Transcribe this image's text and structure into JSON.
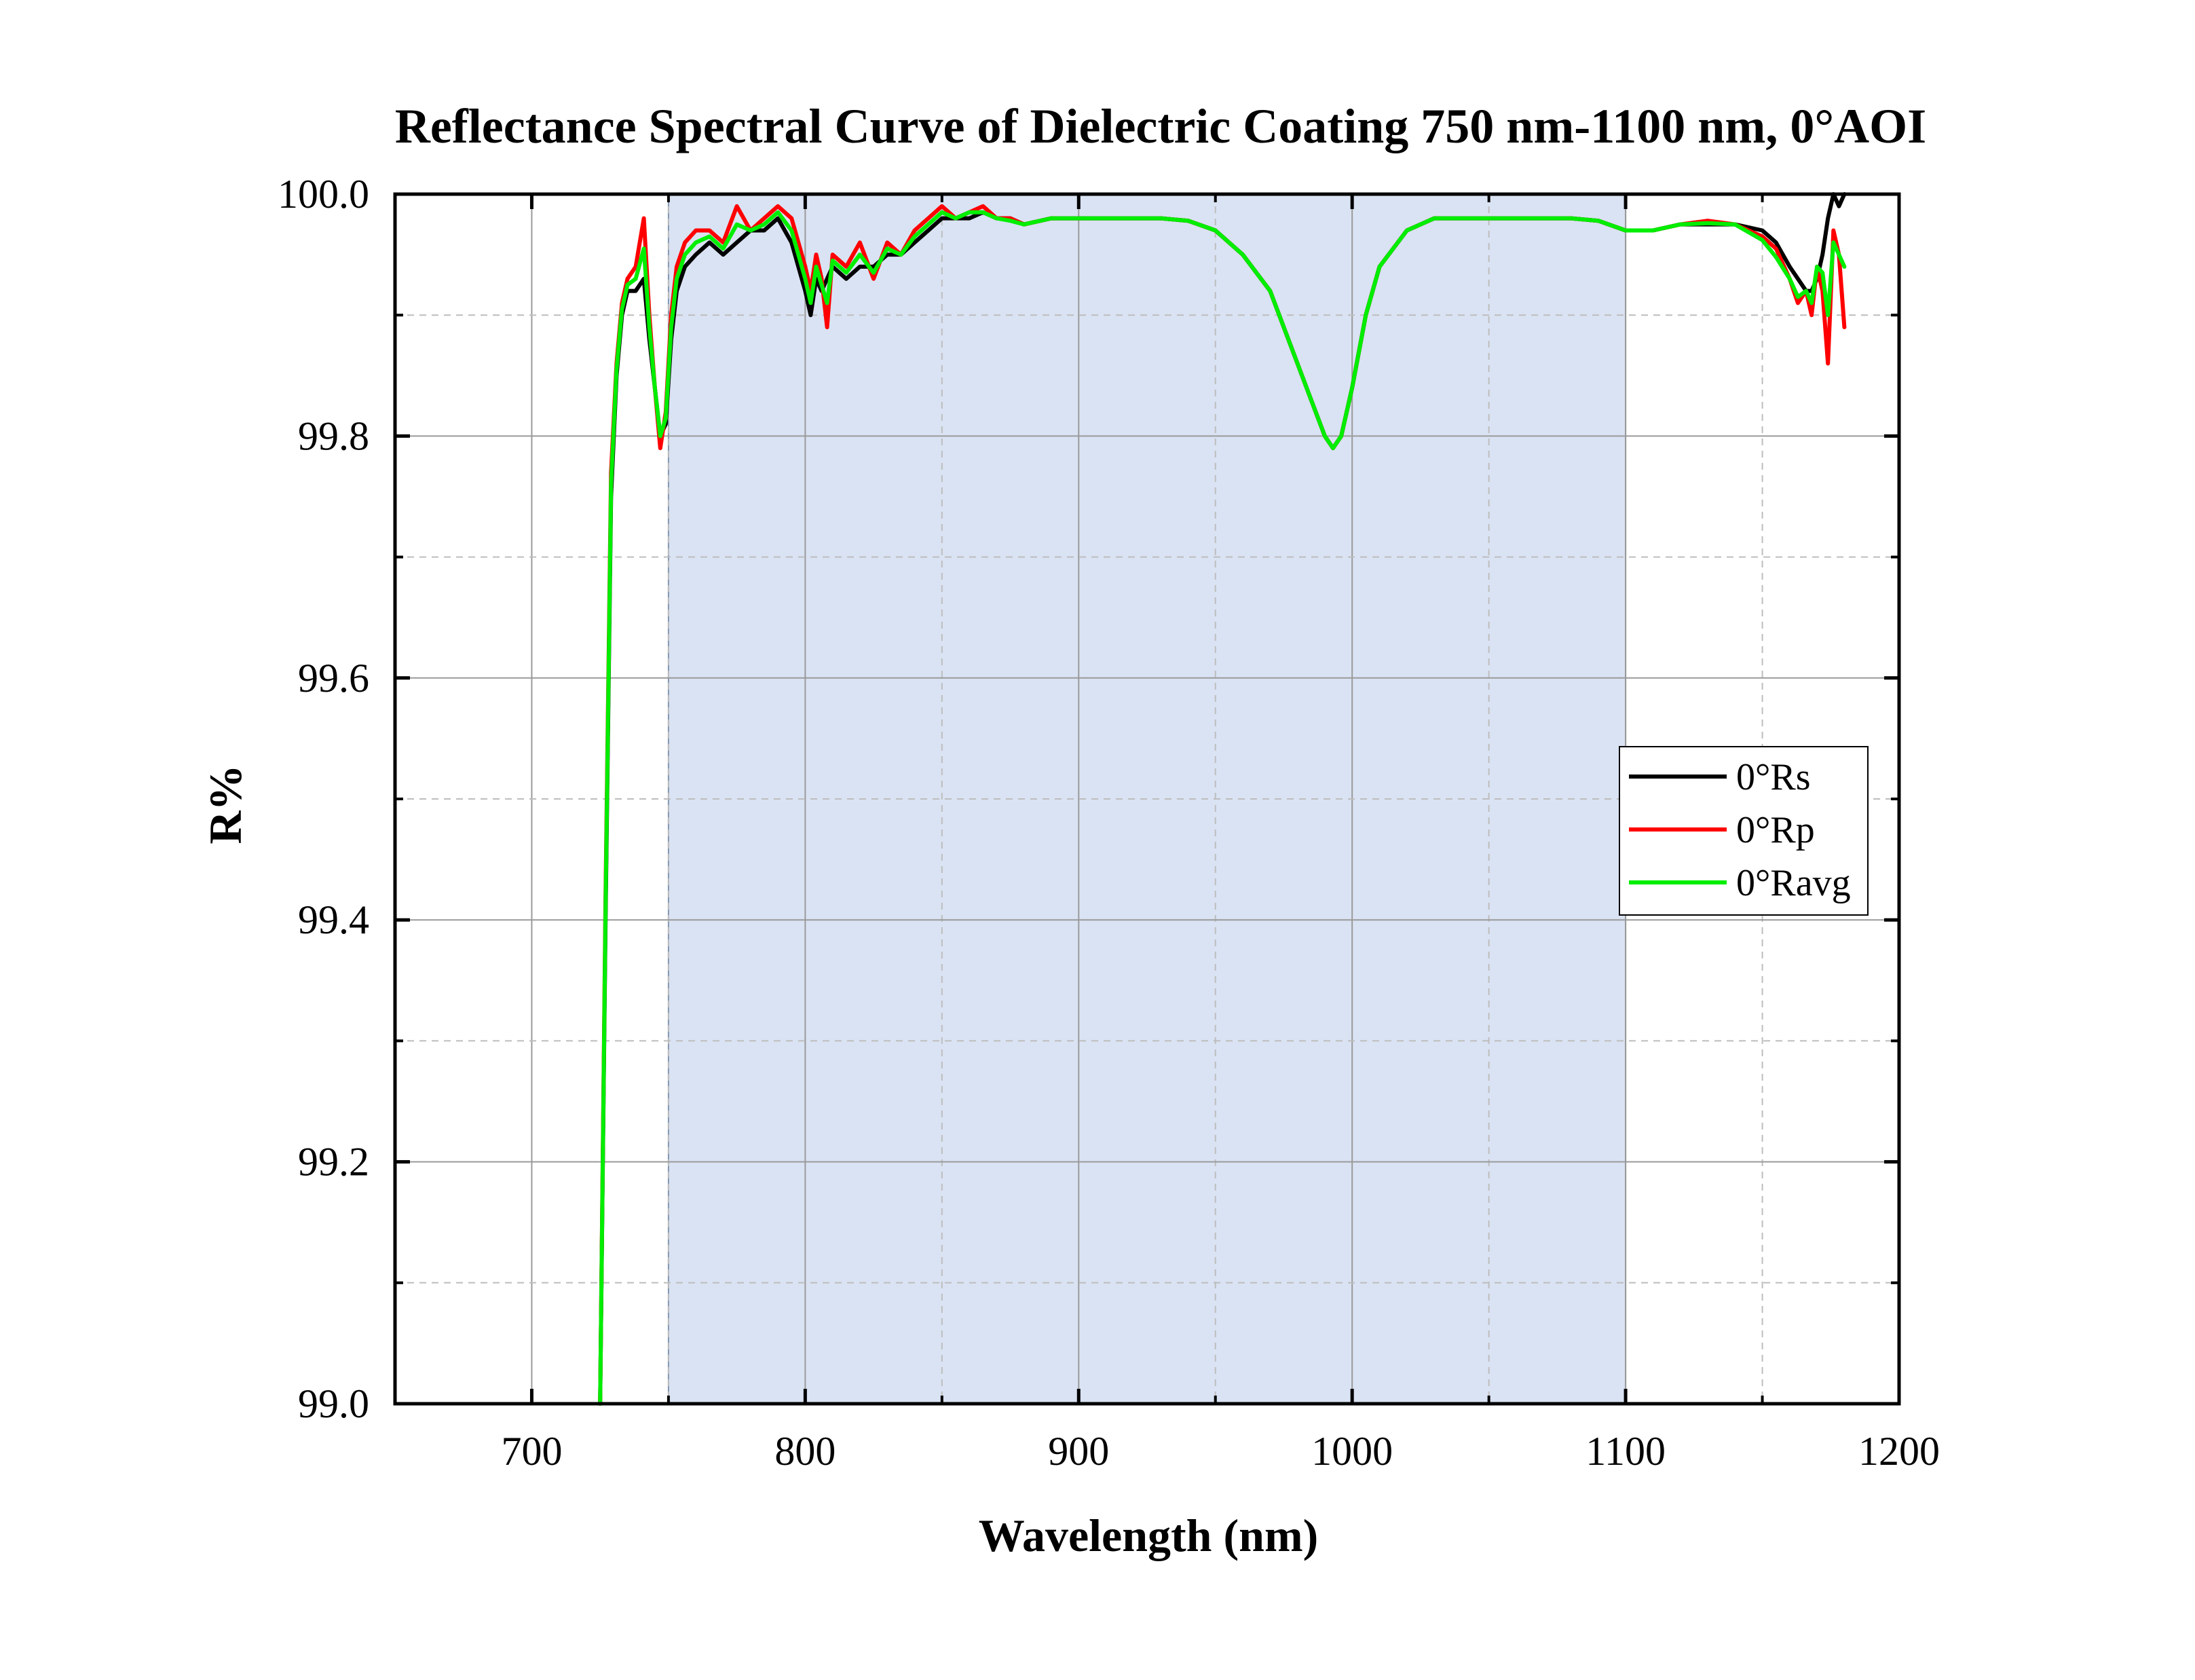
{
  "chart_data": {
    "type": "line",
    "title": "Reflectance Spectral Curve of Dielectric Coating 750 nm-1100 nm,  0°AOI",
    "xlabel": "Wavelength (nm)",
    "ylabel": "R%",
    "xlim": [
      650,
      1200
    ],
    "ylim": [
      99.0,
      100.0
    ],
    "x_ticks": [
      700,
      800,
      900,
      1000,
      1100,
      1200
    ],
    "x_tick_labels": [
      "700",
      "800",
      "900",
      "1000",
      "1100",
      "1200"
    ],
    "y_ticks": [
      99.0,
      99.2,
      99.4,
      99.6,
      99.8,
      100.0
    ],
    "y_tick_labels": [
      "99.0",
      "99.2",
      "99.4",
      "99.6",
      "99.8",
      "100.0"
    ],
    "grid": true,
    "legend_position": "right",
    "shaded_band": {
      "x_start": 750,
      "x_end": 1100,
      "color": "#dae3f3"
    },
    "series": [
      {
        "name": "0°Rs",
        "color": "#000000",
        "x": [
          725,
          727,
          729,
          731,
          733,
          735,
          738,
          741,
          743,
          745,
          747,
          749,
          751,
          753,
          756,
          760,
          765,
          770,
          775,
          780,
          785,
          790,
          795,
          800,
          802,
          804,
          806,
          810,
          815,
          820,
          825,
          830,
          835,
          840,
          845,
          850,
          855,
          860,
          865,
          870,
          875,
          880,
          890,
          900,
          910,
          920,
          930,
          940,
          950,
          960,
          970,
          980,
          985,
          990,
          993,
          996,
          1000,
          1005,
          1010,
          1020,
          1030,
          1040,
          1050,
          1060,
          1070,
          1080,
          1090,
          1100,
          1110,
          1120,
          1130,
          1140,
          1150,
          1155,
          1160,
          1163,
          1166,
          1168,
          1170,
          1172,
          1174,
          1176,
          1178,
          1180
        ],
        "y": [
          99.0,
          99.4,
          99.75,
          99.85,
          99.9,
          99.92,
          99.92,
          99.93,
          99.88,
          99.84,
          99.8,
          99.81,
          99.88,
          99.92,
          99.94,
          99.95,
          99.96,
          99.95,
          99.96,
          99.97,
          99.97,
          99.98,
          99.96,
          99.92,
          99.9,
          99.93,
          99.92,
          99.94,
          99.93,
          99.94,
          99.94,
          99.95,
          99.95,
          99.96,
          99.97,
          99.98,
          99.98,
          99.98,
          99.985,
          99.98,
          99.98,
          99.975,
          99.98,
          99.98,
          99.98,
          99.98,
          99.98,
          99.978,
          99.97,
          99.95,
          99.92,
          99.86,
          99.83,
          99.8,
          99.79,
          99.8,
          99.84,
          99.9,
          99.94,
          99.97,
          99.98,
          99.98,
          99.98,
          99.98,
          99.98,
          99.98,
          99.978,
          99.97,
          99.97,
          99.975,
          99.975,
          99.975,
          99.97,
          99.96,
          99.94,
          99.93,
          99.92,
          99.92,
          99.93,
          99.95,
          99.98,
          100.0,
          99.99,
          100.0
        ]
      },
      {
        "name": "0°Rp",
        "color": "#ff0000",
        "x": [
          725,
          727,
          729,
          731,
          733,
          735,
          738,
          741,
          743,
          745,
          747,
          749,
          751,
          753,
          756,
          760,
          765,
          770,
          775,
          780,
          785,
          790,
          795,
          800,
          802,
          804,
          806,
          808,
          810,
          815,
          820,
          825,
          830,
          835,
          840,
          845,
          850,
          855,
          860,
          865,
          870,
          875,
          880,
          890,
          900,
          910,
          920,
          930,
          940,
          950,
          960,
          970,
          980,
          985,
          990,
          993,
          996,
          1000,
          1005,
          1010,
          1020,
          1030,
          1040,
          1050,
          1060,
          1070,
          1080,
          1090,
          1100,
          1110,
          1120,
          1130,
          1140,
          1150,
          1155,
          1160,
          1163,
          1166,
          1168,
          1170,
          1172,
          1174,
          1176,
          1178,
          1180
        ],
        "y": [
          99.0,
          99.42,
          99.77,
          99.86,
          99.91,
          99.93,
          99.94,
          99.98,
          99.9,
          99.84,
          99.79,
          99.82,
          99.9,
          99.94,
          99.96,
          99.97,
          99.97,
          99.96,
          99.99,
          99.97,
          99.98,
          99.99,
          99.98,
          99.94,
          99.92,
          99.95,
          99.93,
          99.89,
          99.95,
          99.94,
          99.96,
          99.93,
          99.96,
          99.95,
          99.97,
          99.98,
          99.99,
          99.98,
          99.985,
          99.99,
          99.98,
          99.98,
          99.975,
          99.98,
          99.98,
          99.98,
          99.98,
          99.98,
          99.978,
          99.97,
          99.95,
          99.92,
          99.86,
          99.83,
          99.8,
          99.79,
          99.8,
          99.84,
          99.9,
          99.94,
          99.97,
          99.98,
          99.98,
          99.98,
          99.98,
          99.98,
          99.98,
          99.978,
          99.97,
          99.97,
          99.975,
          99.978,
          99.975,
          99.965,
          99.955,
          99.93,
          99.91,
          99.92,
          99.9,
          99.94,
          99.92,
          99.86,
          99.97,
          99.95,
          99.89
        ]
      },
      {
        "name": "0°Ravg",
        "color": "#00ee00",
        "x": [
          725,
          727,
          729,
          731,
          733,
          735,
          738,
          741,
          743,
          745,
          747,
          749,
          751,
          753,
          756,
          760,
          765,
          770,
          775,
          780,
          785,
          790,
          795,
          800,
          802,
          804,
          806,
          808,
          810,
          815,
          820,
          825,
          830,
          835,
          840,
          845,
          850,
          855,
          860,
          865,
          870,
          875,
          880,
          890,
          900,
          910,
          920,
          930,
          940,
          950,
          960,
          970,
          980,
          985,
          990,
          993,
          996,
          1000,
          1005,
          1010,
          1020,
          1030,
          1040,
          1050,
          1060,
          1070,
          1080,
          1090,
          1100,
          1110,
          1120,
          1130,
          1140,
          1150,
          1155,
          1160,
          1163,
          1166,
          1168,
          1170,
          1172,
          1174,
          1176,
          1178,
          1180
        ],
        "y": [
          99.0,
          99.41,
          99.76,
          99.855,
          99.905,
          99.925,
          99.93,
          99.955,
          99.89,
          99.84,
          99.8,
          99.815,
          99.89,
          99.93,
          99.95,
          99.96,
          99.965,
          99.955,
          99.975,
          99.97,
          99.975,
          99.985,
          99.97,
          99.93,
          99.91,
          99.94,
          99.925,
          99.91,
          99.945,
          99.935,
          99.95,
          99.935,
          99.955,
          99.95,
          99.965,
          99.975,
          99.985,
          99.98,
          99.985,
          99.985,
          99.98,
          99.978,
          99.975,
          99.98,
          99.98,
          99.98,
          99.98,
          99.98,
          99.978,
          99.97,
          99.95,
          99.92,
          99.86,
          99.83,
          99.8,
          99.79,
          99.8,
          99.84,
          99.9,
          99.94,
          99.97,
          99.98,
          99.98,
          99.98,
          99.98,
          99.98,
          99.98,
          99.978,
          99.97,
          99.97,
          99.975,
          99.976,
          99.975,
          99.962,
          99.948,
          99.93,
          99.915,
          99.92,
          99.91,
          99.94,
          99.935,
          99.9,
          99.96,
          99.95,
          99.94
        ]
      }
    ]
  }
}
